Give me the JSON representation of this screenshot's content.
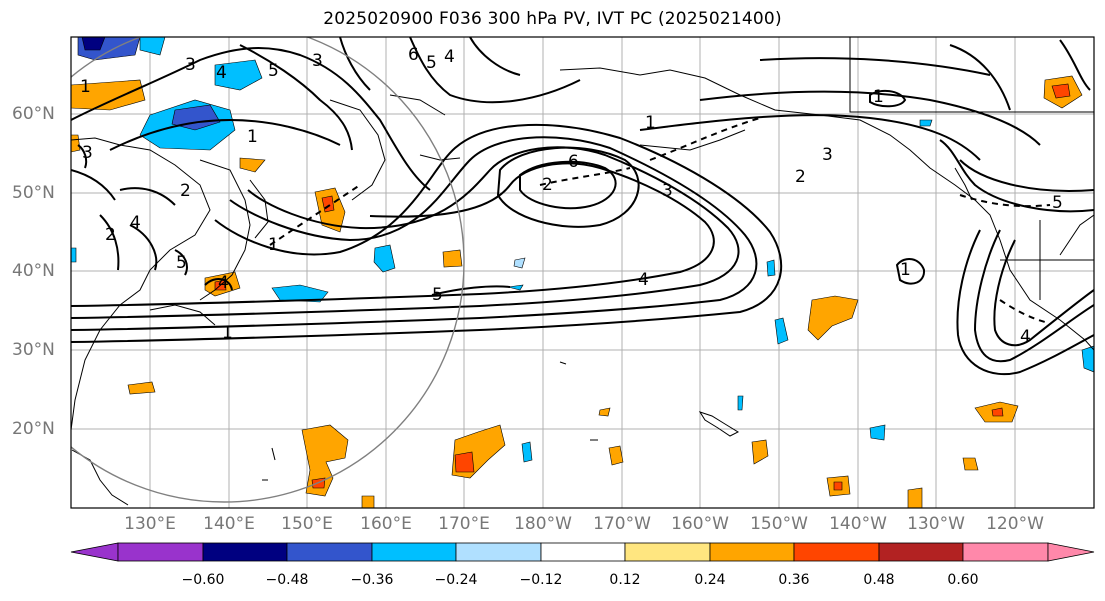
{
  "title": "2025020900 F036 300 hPa PV, IVT PC (2025021400)",
  "map": {
    "lon_labels": [
      "130°E",
      "140°E",
      "150°E",
      "160°E",
      "170°E",
      "180°W",
      "170°W",
      "160°W",
      "150°W",
      "140°W",
      "130°W",
      "120°W"
    ],
    "lat_labels": [
      "60°N",
      "50°N",
      "40°N",
      "30°N",
      "20°N"
    ],
    "contour_labels": [
      "6",
      "5",
      "4",
      "3",
      "2",
      "1",
      "1",
      "3",
      "4",
      "5",
      "6",
      "5",
      "4",
      "3",
      "1",
      "2",
      "3",
      "5",
      "1",
      "2",
      "4",
      "5",
      "4",
      "1",
      "1",
      "1",
      "4",
      "3",
      "2"
    ]
  },
  "colorbar": {
    "levels": [
      "−0.60",
      "−0.48",
      "−0.36",
      "−0.24",
      "−0.12",
      "0.12",
      "0.24",
      "0.36",
      "0.48",
      "0.60"
    ],
    "colors": [
      "#9933cc",
      "#000080",
      "#3355cc",
      "#00bfff",
      "#b0e0ff",
      "#ffffff",
      "#ffe680",
      "#ffa500",
      "#ff4500",
      "#b22222",
      "#ff88aa"
    ]
  }
}
